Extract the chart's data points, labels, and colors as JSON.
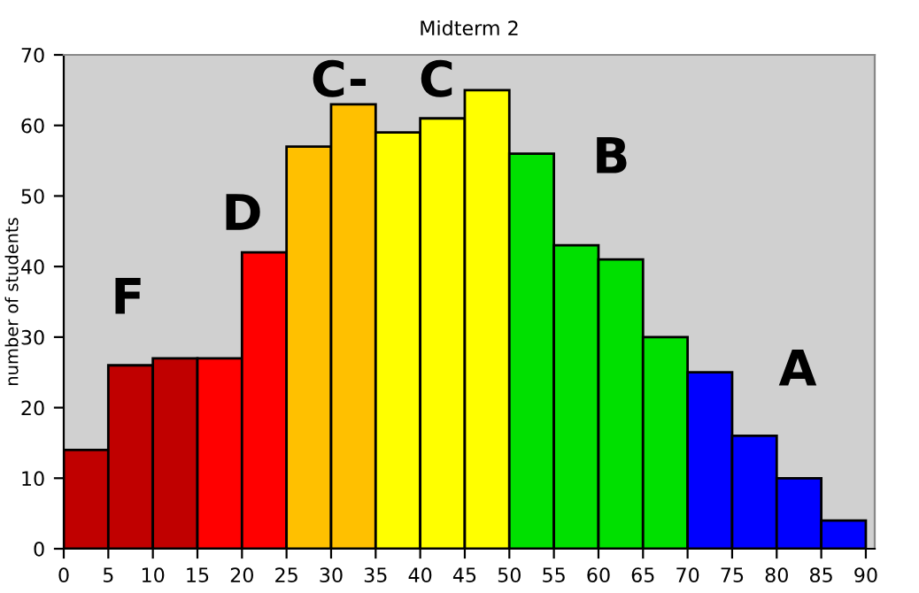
{
  "chart_data": {
    "type": "histogram",
    "title": "Midterm 2",
    "ylabel": "number of students",
    "bins": [
      0,
      5,
      10,
      15,
      20,
      25,
      30,
      35,
      40,
      45,
      50,
      55,
      60,
      65,
      70,
      75,
      80,
      85,
      90
    ],
    "values": [
      14,
      26,
      27,
      27,
      42,
      57,
      63,
      59,
      61,
      65,
      56,
      43,
      41,
      30,
      25,
      16,
      10,
      4
    ],
    "colors": [
      "#c00000",
      "#c00000",
      "#c00000",
      "#ff0000",
      "#ff0000",
      "#ffc000",
      "#ffc000",
      "#ffff00",
      "#ffff00",
      "#ffff00",
      "#00e000",
      "#00e000",
      "#00e000",
      "#00e000",
      "#0000ff",
      "#0000ff",
      "#0000ff",
      "#0000ff"
    ],
    "xlim": [
      0,
      91
    ],
    "ylim": [
      0,
      70
    ],
    "xticks": [
      0,
      5,
      10,
      15,
      20,
      25,
      30,
      35,
      40,
      45,
      50,
      55,
      60,
      65,
      70,
      75,
      80,
      85,
      90
    ],
    "yticks": [
      0,
      10,
      20,
      30,
      40,
      50,
      60,
      70
    ],
    "grid": false,
    "annotations": [
      "F",
      "D",
      "C-",
      "C",
      "B",
      "A"
    ]
  }
}
